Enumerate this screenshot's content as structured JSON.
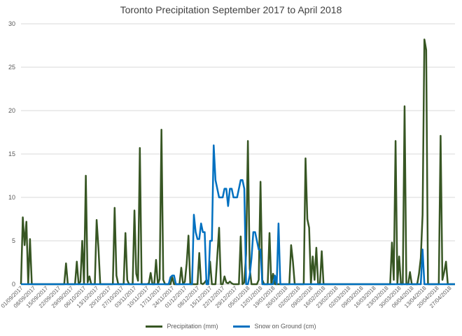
{
  "chart_data": {
    "type": "line",
    "title": "Toronto Precipitation September 2017 to April 2018",
    "xlabel": "",
    "ylabel": "",
    "ylim": [
      0,
      30
    ],
    "yticks": [
      0,
      5,
      10,
      15,
      20,
      25,
      30
    ],
    "grid": true,
    "legend_position": "bottom",
    "x_start": "01/09/2017",
    "x_end": "30/04/2018",
    "x_tick_labels": [
      "01/09/2017",
      "08/09/2017",
      "15/09/2017",
      "22/09/2017",
      "29/09/2017",
      "06/10/2017",
      "13/10/2017",
      "20/10/2017",
      "27/10/2017",
      "03/11/2017",
      "10/11/2017",
      "17/11/2017",
      "24/11/2017",
      "01/12/2017",
      "08/12/2017",
      "15/12/2017",
      "22/12/2017",
      "29/12/2017",
      "05/01/2018",
      "12/01/2018",
      "19/01/2018",
      "26/01/2018",
      "02/02/2018",
      "09/02/2018",
      "16/02/2018",
      "23/02/2018",
      "02/03/2018",
      "09/03/2018",
      "16/03/2018",
      "23/03/2018",
      "30/03/2018",
      "06/04/2018",
      "13/04/2018",
      "20/04/2018",
      "27/04/2018"
    ],
    "series": [
      {
        "name": "Precipitation (mm)",
        "color": "#375623",
        "points": [
          [
            "01/09/2017",
            0
          ],
          [
            "02/09/2017",
            7.7
          ],
          [
            "03/09/2017",
            4.5
          ],
          [
            "04/09/2017",
            7.2
          ],
          [
            "05/09/2017",
            0
          ],
          [
            "06/09/2017",
            5.2
          ],
          [
            "07/09/2017",
            0
          ],
          [
            "25/09/2017",
            0
          ],
          [
            "26/09/2017",
            2.4
          ],
          [
            "27/09/2017",
            0
          ],
          [
            "01/10/2017",
            0
          ],
          [
            "02/10/2017",
            2.6
          ],
          [
            "03/10/2017",
            0
          ],
          [
            "04/10/2017",
            0.3
          ],
          [
            "05/10/2017",
            5
          ],
          [
            "06/10/2017",
            0
          ],
          [
            "07/10/2017",
            12.5
          ],
          [
            "08/10/2017",
            0.2
          ],
          [
            "09/10/2017",
            0.9
          ],
          [
            "10/10/2017",
            0
          ],
          [
            "12/10/2017",
            0
          ],
          [
            "13/10/2017",
            7.4
          ],
          [
            "14/10/2017",
            4.2
          ],
          [
            "15/10/2017",
            0
          ],
          [
            "22/10/2017",
            0
          ],
          [
            "23/10/2017",
            8.8
          ],
          [
            "24/10/2017",
            1
          ],
          [
            "25/10/2017",
            0
          ],
          [
            "28/10/2017",
            0
          ],
          [
            "29/10/2017",
            5.9
          ],
          [
            "30/10/2017",
            0.5
          ],
          [
            "31/10/2017",
            0
          ],
          [
            "02/11/2017",
            0
          ],
          [
            "03/11/2017",
            8.5
          ],
          [
            "04/11/2017",
            1.2
          ],
          [
            "05/11/2017",
            0.4
          ],
          [
            "06/11/2017",
            15.7
          ],
          [
            "07/11/2017",
            0
          ],
          [
            "10/11/2017",
            0
          ],
          [
            "11/11/2017",
            0.1
          ],
          [
            "12/11/2017",
            1.3
          ],
          [
            "13/11/2017",
            0
          ],
          [
            "14/11/2017",
            0
          ],
          [
            "15/11/2017",
            2.8
          ],
          [
            "16/11/2017",
            0
          ],
          [
            "17/11/2017",
            0.6
          ],
          [
            "18/11/2017",
            17.8
          ],
          [
            "19/11/2017",
            0.5
          ],
          [
            "20/11/2017",
            0
          ],
          [
            "23/11/2017",
            0
          ],
          [
            "24/11/2017",
            0.8
          ],
          [
            "25/11/2017",
            0
          ],
          [
            "28/11/2017",
            0
          ],
          [
            "29/11/2017",
            1.9
          ],
          [
            "30/11/2017",
            0
          ],
          [
            "01/12/2017",
            0.3
          ],
          [
            "02/12/2017",
            2.4
          ],
          [
            "03/12/2017",
            5.6
          ],
          [
            "04/12/2017",
            0
          ],
          [
            "08/12/2017",
            0
          ],
          [
            "09/12/2017",
            3.6
          ],
          [
            "10/12/2017",
            0.1
          ],
          [
            "11/12/2017",
            0
          ],
          [
            "12/12/2017",
            0.2
          ],
          [
            "13/12/2017",
            0.5
          ],
          [
            "14/12/2017",
            0
          ],
          [
            "15/12/2017",
            2.6
          ],
          [
            "16/12/2017",
            0
          ],
          [
            "18/12/2017",
            0
          ],
          [
            "19/12/2017",
            3.2
          ],
          [
            "20/12/2017",
            6.5
          ],
          [
            "21/12/2017",
            0
          ],
          [
            "22/12/2017",
            0
          ],
          [
            "23/12/2017",
            0.9
          ],
          [
            "24/12/2017",
            0.2
          ],
          [
            "25/12/2017",
            0.1
          ],
          [
            "26/12/2017",
            0.3
          ],
          [
            "27/12/2017",
            0.1
          ],
          [
            "28/12/2017",
            0
          ],
          [
            "31/12/2017",
            0
          ],
          [
            "01/01/2018",
            5.5
          ],
          [
            "02/01/2018",
            0
          ],
          [
            "03/01/2018",
            0.2
          ],
          [
            "04/01/2018",
            3.5
          ],
          [
            "05/01/2018",
            16.5
          ],
          [
            "06/01/2018",
            1.8
          ],
          [
            "07/01/2018",
            0
          ],
          [
            "10/01/2018",
            0
          ],
          [
            "11/01/2018",
            0.5
          ],
          [
            "12/01/2018",
            11.8
          ],
          [
            "13/01/2018",
            0.5
          ],
          [
            "14/01/2018",
            0
          ],
          [
            "16/01/2018",
            0
          ],
          [
            "17/01/2018",
            5.9
          ],
          [
            "18/01/2018",
            0
          ],
          [
            "19/01/2018",
            1.2
          ],
          [
            "20/01/2018",
            0
          ],
          [
            "28/01/2018",
            0
          ],
          [
            "29/01/2018",
            4.5
          ],
          [
            "30/01/2018",
            2.6
          ],
          [
            "31/01/2018",
            0
          ],
          [
            "05/02/2018",
            0
          ],
          [
            "06/02/2018",
            14.5
          ],
          [
            "07/02/2018",
            7.5
          ],
          [
            "08/02/2018",
            6.5
          ],
          [
            "09/02/2018",
            0
          ],
          [
            "10/02/2018",
            3.2
          ],
          [
            "11/02/2018",
            0.5
          ],
          [
            "12/02/2018",
            4.2
          ],
          [
            "13/02/2018",
            0
          ],
          [
            "14/02/2018",
            0
          ],
          [
            "15/02/2018",
            3.8
          ],
          [
            "16/02/2018",
            0
          ],
          [
            "25/03/2018",
            0
          ],
          [
            "26/03/2018",
            4.8
          ],
          [
            "27/03/2018",
            0.5
          ],
          [
            "28/03/2018",
            16.5
          ],
          [
            "29/03/2018",
            0
          ],
          [
            "30/03/2018",
            3.2
          ],
          [
            "31/03/2018",
            0
          ],
          [
            "01/04/2018",
            0
          ],
          [
            "02/04/2018",
            20.5
          ],
          [
            "03/04/2018",
            0
          ],
          [
            "04/04/2018",
            0
          ],
          [
            "05/04/2018",
            1.4
          ],
          [
            "06/04/2018",
            0
          ],
          [
            "09/04/2018",
            0
          ],
          [
            "10/04/2018",
            1.2
          ],
          [
            "11/04/2018",
            3
          ],
          [
            "12/04/2018",
            8
          ],
          [
            "13/04/2018",
            28.2
          ],
          [
            "14/04/2018",
            27
          ],
          [
            "15/04/2018",
            0
          ],
          [
            "21/04/2018",
            0
          ],
          [
            "22/04/2018",
            17.1
          ],
          [
            "23/04/2018",
            0.5
          ],
          [
            "24/04/2018",
            1.4
          ],
          [
            "25/04/2018",
            2.6
          ],
          [
            "26/04/2018",
            0
          ],
          [
            "30/04/2018",
            0
          ]
        ]
      },
      {
        "name": "Snow on Ground (cm)",
        "color": "#0070c0",
        "points": [
          [
            "01/09/2017",
            0
          ],
          [
            "22/11/2017",
            0
          ],
          [
            "23/11/2017",
            0.8
          ],
          [
            "24/11/2017",
            1
          ],
          [
            "25/11/2017",
            1
          ],
          [
            "26/11/2017",
            0
          ],
          [
            "05/12/2017",
            0
          ],
          [
            "06/12/2017",
            8
          ],
          [
            "07/12/2017",
            6
          ],
          [
            "08/12/2017",
            5.2
          ],
          [
            "09/12/2017",
            5.2
          ],
          [
            "10/12/2017",
            7
          ],
          [
            "11/12/2017",
            6
          ],
          [
            "12/12/2017",
            6
          ],
          [
            "13/12/2017",
            0
          ],
          [
            "14/12/2017",
            0
          ],
          [
            "15/12/2017",
            5
          ],
          [
            "16/12/2017",
            5
          ],
          [
            "17/12/2017",
            16
          ],
          [
            "18/12/2017",
            12
          ],
          [
            "19/12/2017",
            11
          ],
          [
            "20/12/2017",
            10
          ],
          [
            "21/12/2017",
            10
          ],
          [
            "22/12/2017",
            10
          ],
          [
            "23/12/2017",
            11
          ],
          [
            "24/12/2017",
            11
          ],
          [
            "25/12/2017",
            9
          ],
          [
            "26/12/2017",
            11
          ],
          [
            "27/12/2017",
            11
          ],
          [
            "28/12/2017",
            10
          ],
          [
            "29/12/2017",
            10
          ],
          [
            "30/12/2017",
            10
          ],
          [
            "31/12/2017",
            11
          ],
          [
            "01/01/2018",
            12
          ],
          [
            "02/01/2018",
            12
          ],
          [
            "03/01/2018",
            11
          ],
          [
            "04/01/2018",
            0
          ],
          [
            "05/01/2018",
            0
          ],
          [
            "06/01/2018",
            1
          ],
          [
            "07/01/2018",
            3
          ],
          [
            "08/01/2018",
            6
          ],
          [
            "09/01/2018",
            6
          ],
          [
            "10/01/2018",
            5
          ],
          [
            "11/01/2018",
            4
          ],
          [
            "12/01/2018",
            4
          ],
          [
            "13/01/2018",
            0
          ],
          [
            "19/01/2018",
            0
          ],
          [
            "20/01/2018",
            1
          ],
          [
            "21/01/2018",
            0
          ],
          [
            "22/01/2018",
            7
          ],
          [
            "23/01/2018",
            0
          ],
          [
            "30/04/2018",
            0
          ],
          [
            "11/04/2018",
            0
          ],
          [
            "12/04/2018",
            4
          ],
          [
            "13/04/2018",
            0
          ]
        ]
      }
    ]
  }
}
